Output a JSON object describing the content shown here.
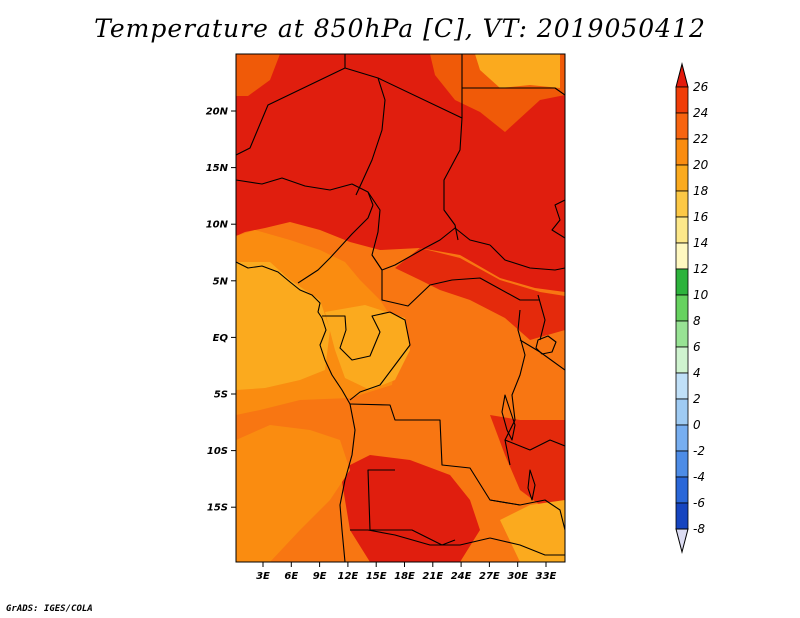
{
  "title": "Temperature at 850hPa [C], VT: 2019050412",
  "footer": "GrADS: IGES/COLA",
  "map": {
    "lon_labels": [
      "3E",
      "6E",
      "9E",
      "12E",
      "15E",
      "18E",
      "21E",
      "24E",
      "27E",
      "30E",
      "33E"
    ],
    "lat_labels": [
      "20N",
      "15N",
      "10N",
      "5N",
      "EQ",
      "5S",
      "10S",
      "15S"
    ]
  },
  "colorbar": {
    "labels": [
      "26",
      "24",
      "22",
      "20",
      "18",
      "16",
      "14",
      "12",
      "10",
      "8",
      "6",
      "4",
      "2",
      "0",
      "-2",
      "-4",
      "-6",
      "-8"
    ],
    "colors": [
      "#e31a0c",
      "#f03d08",
      "#f76410",
      "#fa8c10",
      "#fbaa1e",
      "#fcc845",
      "#fde88a",
      "#fff8c0",
      "#2db33c",
      "#66d25f",
      "#98e394",
      "#cff3cf",
      "#c0e0f8",
      "#9fcbf3",
      "#77aef0",
      "#4d8ce6",
      "#2a67d8",
      "#1645c0",
      "#0a2792",
      "#000770",
      "#dcdcf2"
    ],
    "top_color": "#e31a0c",
    "bottom_color": "#dcdcf2"
  }
}
